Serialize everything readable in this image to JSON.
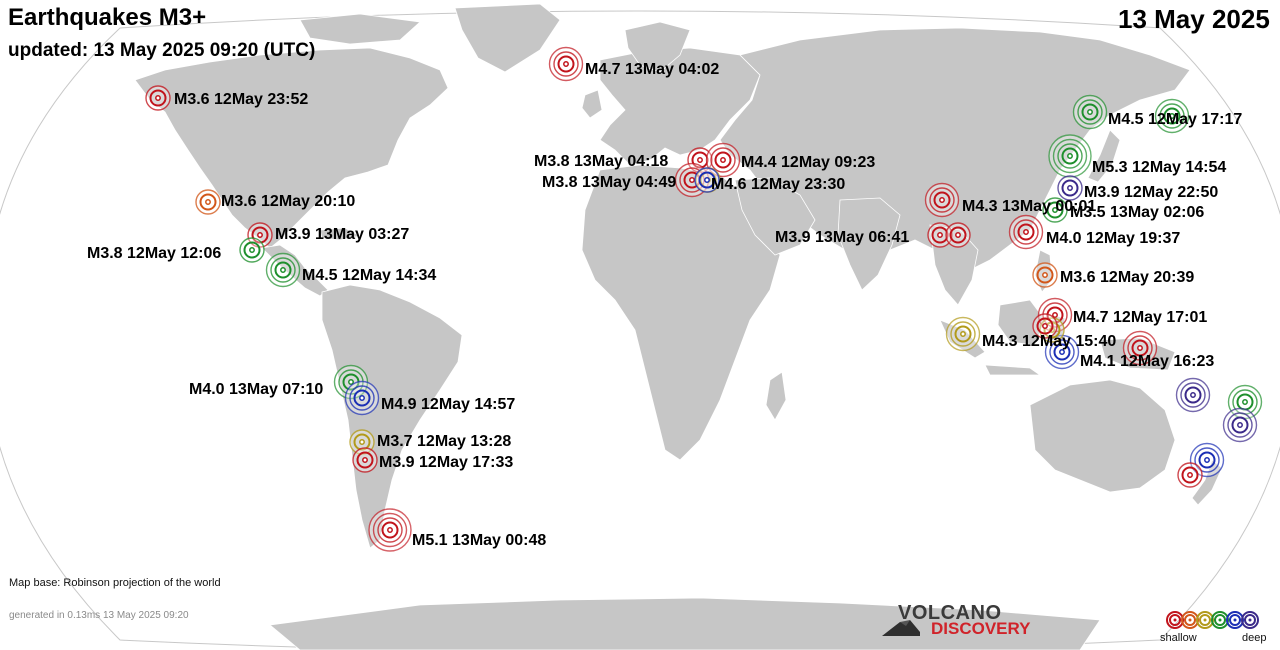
{
  "header": {
    "title": "Earthquakes M3+",
    "updated": "updated: 13 May 2025 09:20 (UTC)",
    "date": "13 May 2025"
  },
  "footer": {
    "map_base": "Map base: Robinson projection of the world",
    "generated": "generated in 0.13ms 13 May 2025 09:20"
  },
  "logo": {
    "line1": "VOLCANO",
    "line2": "DISCOVERY"
  },
  "legend": {
    "shallow": "shallow",
    "deep": "deep",
    "depth_colors": [
      "#c1141c",
      "#d2571a",
      "#b29a1a",
      "#1e8f2c",
      "#1b2fb5",
      "#3b2a8a"
    ]
  },
  "colors": {
    "ocean": "#ffffff",
    "land": "#c6c6c6",
    "coast": "#ffffff",
    "red": "#c1141c",
    "orange": "#d2571a",
    "yellow": "#b29a1a",
    "green": "#1e8f2c",
    "blue": "#1b2fb5",
    "purple": "#3b2a8a"
  },
  "quakes": [
    {
      "label": "M4.7 13May 04:02",
      "color": "red"
    },
    {
      "label": "M3.6 12May 23:52",
      "color": "red"
    },
    {
      "label": "M3.6 12May 20:10",
      "color": "orange"
    },
    {
      "label": "M3.9 13May 03:27",
      "color": "red"
    },
    {
      "label": "M3.8 12May 12:06",
      "color": "green"
    },
    {
      "label": "M4.5 12May 14:34",
      "color": "green"
    },
    {
      "label": "M4.0 13May 07:10",
      "color": "green"
    },
    {
      "label": "M4.9 12May 14:57",
      "color": "blue"
    },
    {
      "label": "M3.7 12May 13:28",
      "color": "yellow"
    },
    {
      "label": "M3.9 12May 17:33",
      "color": "red"
    },
    {
      "label": "M5.1 13May 00:48",
      "color": "red"
    },
    {
      "label": "M3.8 13May 04:18",
      "color": "red"
    },
    {
      "label": "M4.4 12May 09:23",
      "color": "red"
    },
    {
      "label": "M3.8 13May 04:49",
      "color": "red"
    },
    {
      "label": "M4.6 12May 23:30",
      "color": "yellow"
    },
    {
      "label": "M4.3 13May 00:01",
      "color": "red"
    },
    {
      "label": "M3.9 13May 06:41",
      "color": "red"
    },
    {
      "label": "M4.0 12May 19:37",
      "color": "red"
    },
    {
      "label": "M4.5 12May 17:17",
      "color": "green"
    },
    {
      "label": "M5.3 12May 14:54",
      "color": "green"
    },
    {
      "label": "M3.9 12May 22:50",
      "color": "purple"
    },
    {
      "label": "M3.5 13May 02:06",
      "color": "green"
    },
    {
      "label": "M3.6 12May 20:39",
      "color": "orange"
    },
    {
      "label": "M4.7 12May 17:01",
      "color": "red"
    },
    {
      "label": "M4.3 12May 15:40",
      "color": "yellow"
    },
    {
      "label": "M4.1 12May 16:23",
      "color": "blue"
    },
    {
      "color": "red"
    },
    {
      "color": "red"
    },
    {
      "color": "green"
    },
    {
      "color": "yellow"
    },
    {
      "color": "purple"
    },
    {
      "color": "green"
    },
    {
      "color": "purple"
    },
    {
      "color": "blue"
    },
    {
      "color": "red"
    },
    {
      "color": "blue"
    },
    {
      "color": "red"
    }
  ]
}
